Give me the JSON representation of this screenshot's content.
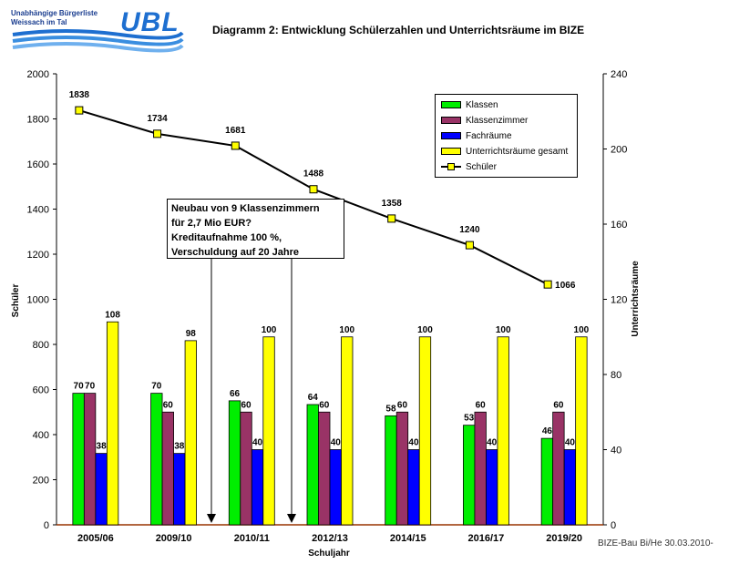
{
  "logo": {
    "line1": "Unabhängige Bürgerliste",
    "line2": "Weissach im Tal",
    "wordmark": "UBL"
  },
  "title": "Diagramm 2: Entwicklung Schülerzahlen und Unterrichtsräume im BIZE",
  "annotation": {
    "lines": [
      "Neubau von 9 Klassenzimmern",
      "für 2,7 Mio EUR?",
      "Kreditaufnahme 100 %,",
      "Verschuldung auf 20 Jahre"
    ]
  },
  "footer": "BIZE-Bau Bi/He 30.03.2010-",
  "colors": {
    "klassen": "#00ee00",
    "klassenzimmer": "#993366",
    "fachraeume": "#0000ff",
    "unterricht": "#ffff00",
    "line": "#000000",
    "axis_line": "#993300"
  },
  "chart_data": {
    "type": "bar",
    "title": "Diagramm 2: Entwicklung Schülerzahlen und Unterrichtsräume im BIZE",
    "xlabel": "Schuljahr",
    "ylabel": "Schüler",
    "y2label": "Unterrichtsräume",
    "categories": [
      "2005/06",
      "2009/10",
      "2010/11",
      "2012/13",
      "2014/15",
      "2016/17",
      "2019/20"
    ],
    "ylim": [
      0,
      2000
    ],
    "yticks": [
      "0",
      "200",
      "400",
      "600",
      "800",
      "1000",
      "1200",
      "1400",
      "1600",
      "1800",
      "2000"
    ],
    "y2lim": [
      0,
      240
    ],
    "y2ticks": [
      "0",
      "40",
      "80",
      "120",
      "160",
      "200",
      "240"
    ],
    "series": [
      {
        "name": "Klassen",
        "axis": "right",
        "values": [
          70,
          70,
          66,
          64,
          58,
          53,
          46
        ],
        "labels": [
          "70",
          "70",
          "66",
          "64",
          "58",
          "53",
          "46"
        ]
      },
      {
        "name": "Klassenzimmer",
        "axis": "right",
        "values": [
          70,
          60,
          60,
          60,
          60,
          60,
          60
        ],
        "labels": [
          "70",
          "60",
          "60",
          "60",
          "60",
          "60",
          "60"
        ]
      },
      {
        "name": "Fachräume",
        "axis": "right",
        "values": [
          38,
          38,
          40,
          40,
          40,
          40,
          40
        ],
        "labels": [
          "38",
          "38",
          "40",
          "40",
          "40",
          "40",
          "40"
        ]
      },
      {
        "name": "Unterrichtsräume gesamt",
        "axis": "right",
        "values": [
          108,
          98,
          100,
          100,
          100,
          100,
          100
        ],
        "labels": [
          "108",
          "98",
          "100",
          "100",
          "100",
          "100",
          "100"
        ]
      },
      {
        "name": "Schüler",
        "axis": "left",
        "type": "line",
        "values": [
          1838,
          1734,
          1681,
          1488,
          1358,
          1240,
          1066
        ],
        "labels": [
          "1838",
          "1734",
          "1681",
          "1488",
          "1358",
          "1240",
          "1066"
        ]
      }
    ],
    "legend": [
      "Klassen",
      "Klassenzimmer",
      "Fachräume",
      "Unterrichtsräume gesamt",
      "Schüler"
    ],
    "legend_position": "top-right",
    "annotation_arrows": "two downward arrows from the annotation box to the x-axis between 2009/10 and 2012/13"
  }
}
